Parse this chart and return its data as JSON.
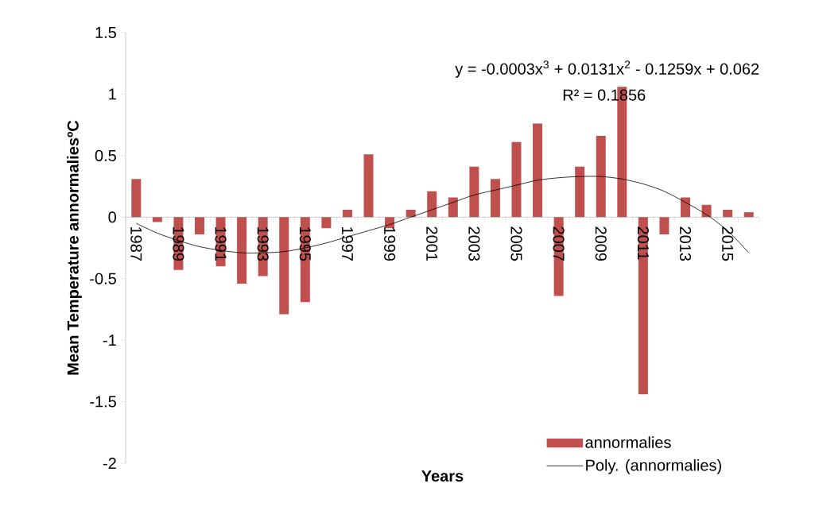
{
  "chart_data": {
    "type": "bar",
    "categories": [
      "1987",
      null,
      "1989",
      null,
      "1991",
      null,
      "1993",
      null,
      "1995",
      null,
      "1997",
      null,
      "1999",
      null,
      "2001",
      null,
      "2003",
      null,
      "2005",
      null,
      "2007",
      null,
      "2009",
      null,
      "2011",
      null,
      "2013",
      null,
      "2015",
      null
    ],
    "series": [
      {
        "name": "annormalies",
        "color": "#c0504d",
        "values": [
          0.31,
          -0.04,
          -0.43,
          -0.14,
          -0.4,
          -0.54,
          -0.48,
          -0.79,
          -0.69,
          -0.09,
          0.06,
          0.51,
          -0.09,
          0.06,
          0.21,
          0.16,
          0.41,
          0.31,
          0.61,
          0.76,
          -0.64,
          0.41,
          0.66,
          1.06,
          -1.44,
          -0.14,
          0.16,
          0.1,
          0.06,
          0.04
        ]
      },
      {
        "name": "Poly. (annormalies)",
        "type": "line",
        "color": "#000000",
        "values": [
          -0.05,
          -0.13,
          -0.19,
          -0.24,
          -0.27,
          -0.29,
          -0.29,
          -0.28,
          -0.25,
          -0.21,
          -0.16,
          -0.11,
          -0.06,
          0.0,
          0.06,
          0.12,
          0.18,
          0.22,
          0.26,
          0.3,
          0.32,
          0.33,
          0.33,
          0.31,
          0.27,
          0.21,
          0.12,
          0.02,
          -0.11,
          -0.29
        ]
      }
    ],
    "ylim": [
      -2,
      1.5
    ],
    "yticks": [
      -2,
      -1.5,
      -1,
      -0.5,
      0,
      0.5,
      1,
      1.5
    ],
    "xlabel": "Years",
    "ylabel": "Mean Temperature annormaliesºC",
    "annotations": [
      "y = -0.0003x$^{3}$ + 0.0131x$^{2}$ - 0.1259x + 0.062",
      "R² = 0.1856"
    ],
    "legend": "bottom right"
  }
}
